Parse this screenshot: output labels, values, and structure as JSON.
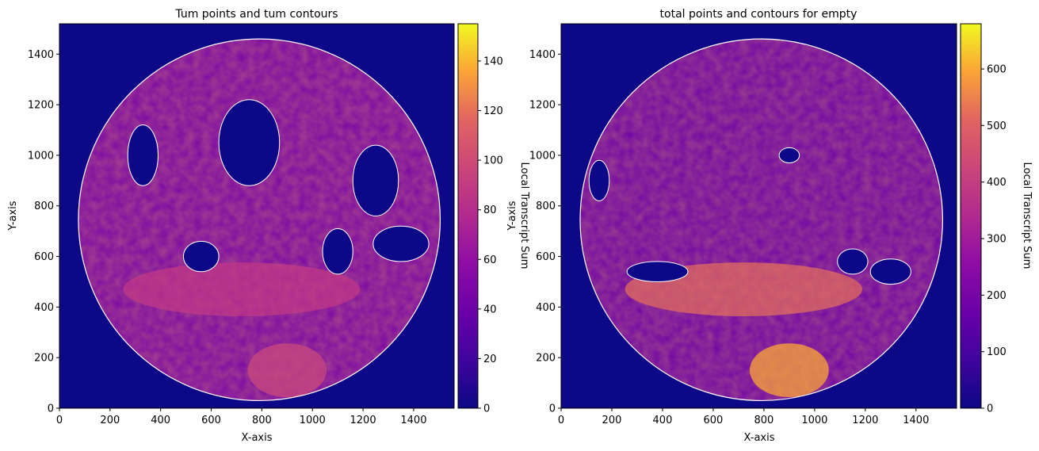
{
  "colors": {
    "cmap": "plasma",
    "contour": "#ffffff"
  },
  "chart_data": [
    {
      "type": "heatmap",
      "title": "Tum points and tum contours",
      "xlabel": "X-axis",
      "ylabel": "Y-axis",
      "xlim": [
        0,
        1560
      ],
      "ylim": [
        0,
        1520
      ],
      "xticks": [
        0,
        200,
        400,
        600,
        800,
        1000,
        1200,
        1400
      ],
      "yticks": [
        0,
        200,
        400,
        600,
        800,
        1000,
        1200,
        1400
      ],
      "colorbar": {
        "label": "Local Transcript Sum",
        "range": [
          0,
          155
        ],
        "ticks": [
          0,
          20,
          40,
          60,
          80,
          100,
          120,
          140
        ]
      },
      "grid": false,
      "tissue_center": [
        790,
        745
      ],
      "tissue_radius": 715
    },
    {
      "type": "heatmap",
      "title": "total points and contours for empty",
      "xlabel": "X-axis",
      "ylabel": "Y-axis",
      "xlim": [
        0,
        1560
      ],
      "ylim": [
        0,
        1520
      ],
      "xticks": [
        0,
        200,
        400,
        600,
        800,
        1000,
        1200,
        1400
      ],
      "yticks": [
        0,
        200,
        400,
        600,
        800,
        1000,
        1200,
        1400
      ],
      "colorbar": {
        "label": "Local Transcript Sum",
        "range": [
          0,
          680
        ],
        "ticks": [
          0,
          100,
          200,
          300,
          400,
          500,
          600
        ]
      },
      "grid": false,
      "tissue_center": [
        790,
        745
      ],
      "tissue_radius": 715
    }
  ]
}
